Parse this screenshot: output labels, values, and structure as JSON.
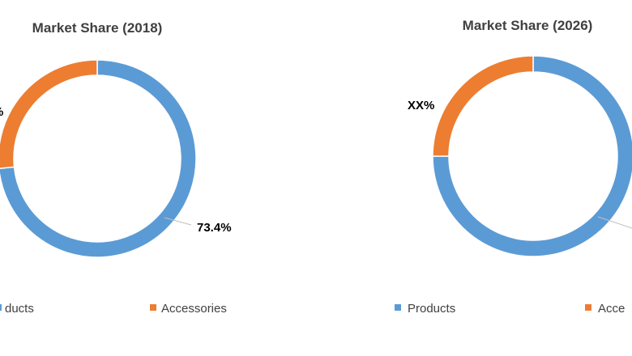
{
  "colors": {
    "products": "#5b9bd5",
    "accessories": "#ed7d31",
    "leader": "#bfbfbf",
    "text": "#404040",
    "label": "#000000"
  },
  "chart_data": [
    {
      "type": "pie",
      "variant": "donut",
      "title": "Market Share (2018)",
      "legend_position": "bottom",
      "series": [
        {
          "name": "Products",
          "value": 73.4,
          "label": "73.4%"
        },
        {
          "name": "Accessories",
          "value": 26.6,
          "label": "%"
        }
      ]
    },
    {
      "type": "pie",
      "variant": "donut",
      "title": "Market Share (2026)",
      "legend_position": "bottom",
      "series": [
        {
          "name": "Products",
          "value": 75,
          "label": ""
        },
        {
          "name": "Accessories",
          "value": 25,
          "label": "XX%"
        }
      ]
    }
  ],
  "legend_labels": {
    "chart1_products": "ducts",
    "chart1_accessories": "Accessories",
    "chart2_products": "Products",
    "chart2_accessories": "Acce"
  }
}
